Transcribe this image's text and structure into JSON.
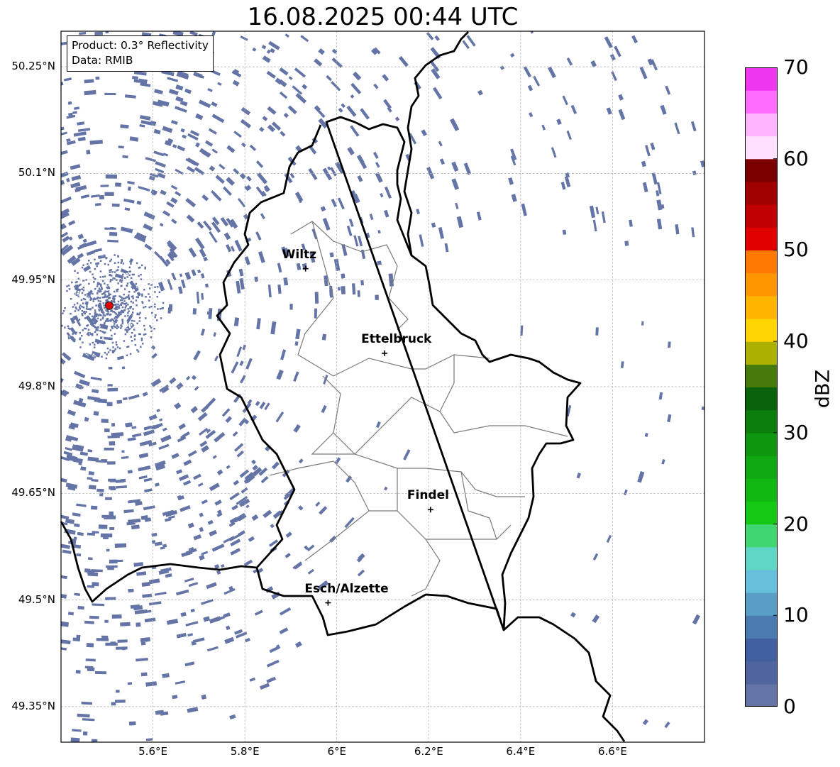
{
  "title": "16.08.2025 00:44 UTC",
  "info": {
    "product": "Product: 0.3° Reflectivity",
    "data": "Data: RMIB"
  },
  "map": {
    "lon_range": [
      5.4,
      6.8
    ],
    "lat_range": [
      49.3,
      50.3
    ],
    "lat_ticks": [
      {
        "value": 50.25,
        "label": "50.25°N"
      },
      {
        "value": 50.1,
        "label": "50.1°N"
      },
      {
        "value": 49.95,
        "label": "49.95°N"
      },
      {
        "value": 49.8,
        "label": "49.8°N"
      },
      {
        "value": 49.65,
        "label": "49.65°N"
      },
      {
        "value": 49.5,
        "label": "49.5°N"
      },
      {
        "value": 49.35,
        "label": "49.35°N"
      }
    ],
    "lon_ticks": [
      {
        "value": 5.6,
        "label": "5.6°E"
      },
      {
        "value": 5.8,
        "label": "5.8°E"
      },
      {
        "value": 6.0,
        "label": "6°E"
      },
      {
        "value": 6.2,
        "label": "6.2°E"
      },
      {
        "value": 6.4,
        "label": "6.4°E"
      },
      {
        "value": 6.6,
        "label": "6.6°E"
      }
    ],
    "gridlines": true,
    "radar_site": {
      "lon": 5.505,
      "lat": 49.914,
      "color": "#e00000"
    },
    "echo_color": "#6474a6",
    "cities": [
      {
        "name": "Wiltz",
        "lon": 5.932,
        "lat": 49.966
      },
      {
        "name": "Ettelbruck",
        "lon": 6.104,
        "lat": 49.847
      },
      {
        "name": "Findel",
        "lon": 6.204,
        "lat": 49.627
      },
      {
        "name": "Esch/Alzette",
        "lon": 5.981,
        "lat": 49.496
      }
    ]
  },
  "colorbar": {
    "unit": "dBZ",
    "min": 0,
    "max": 70,
    "tick_labels": [
      "0",
      "10",
      "20",
      "30",
      "40",
      "50",
      "60",
      "70"
    ],
    "colors": [
      "#6474a6",
      "#5064a0",
      "#4060a0",
      "#4a7ab0",
      "#5a9ec6",
      "#66c0dc",
      "#60d6c6",
      "#40d670",
      "#14c814",
      "#12b812",
      "#10a810",
      "#0e960e",
      "#0c7e0c",
      "#0a620a",
      "#467a0a",
      "#acb000",
      "#ffd400",
      "#ffb400",
      "#ff9600",
      "#ff7800",
      "#e00000",
      "#c00000",
      "#a00000",
      "#7a0000",
      "#ffe0ff",
      "#ffb6ff",
      "#ff6cff",
      "#ee36ee"
    ]
  }
}
